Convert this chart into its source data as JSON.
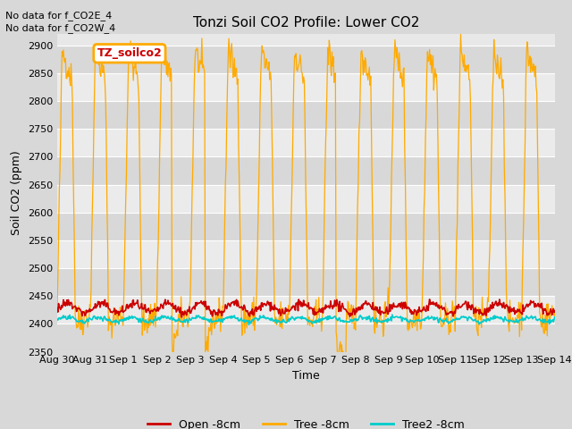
{
  "title": "Tonzi Soil CO2 Profile: Lower CO2",
  "ylabel": "Soil CO2 (ppm)",
  "xlabel": "Time",
  "annotations": [
    "No data for f_CO2E_4",
    "No data for f_CO2W_4"
  ],
  "legend_label": "TZ_soilco2",
  "ylim": [
    2350,
    2920
  ],
  "yticks": [
    2350,
    2400,
    2450,
    2500,
    2550,
    2600,
    2650,
    2700,
    2750,
    2800,
    2850,
    2900
  ],
  "xtick_labels": [
    "Aug 30",
    "Aug 31",
    "Sep 1",
    "Sep 2",
    "Sep 3",
    "Sep 4",
    "Sep 5",
    "Sep 6",
    "Sep 7",
    "Sep 8",
    "Sep 9",
    "Sep 10",
    "Sep 11",
    "Sep 12",
    "Sep 13",
    "Sep 14"
  ],
  "line_colors": {
    "open": "#cc0000",
    "tree": "#ffaa00",
    "tree2": "#00cccc"
  },
  "legend_entries": [
    "Open -8cm",
    "Tree -8cm",
    "Tree2 -8cm"
  ],
  "bg_color": "#d8d8d8",
  "plot_bg_color": "#e8e8e8",
  "grid_color_light": "#f0f0f0",
  "grid_color_dark": "#d8d8d8",
  "title_fontsize": 11,
  "label_fontsize": 9,
  "tick_fontsize": 8
}
